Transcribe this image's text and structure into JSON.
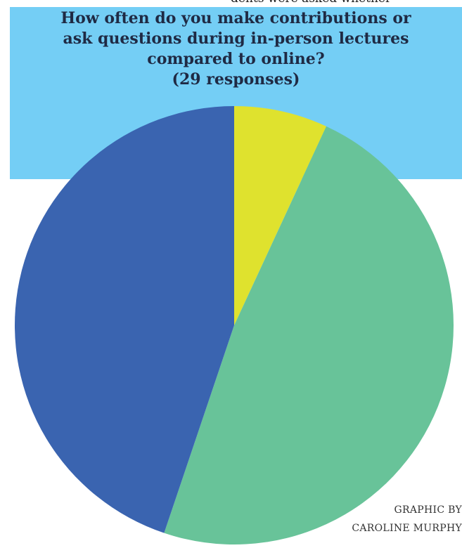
{
  "article": {
    "cut_text": "dents were asked whether"
  },
  "chart_data": {
    "type": "pie",
    "title": "How often do you make contributions or ask questions during in-person lectures compared to online?",
    "subtitle": "(29 responses)",
    "slices": [
      {
        "label": "",
        "value": 2,
        "color": "#dfe22e"
      },
      {
        "label": "",
        "value": 14,
        "color": "#68c399"
      },
      {
        "label": "",
        "value": 13,
        "color": "#3a64b0"
      }
    ],
    "total": 29,
    "legend": "none"
  },
  "credit": {
    "line1": "GRAPHIC BY",
    "line2": "CAROLINE MURPHY"
  }
}
